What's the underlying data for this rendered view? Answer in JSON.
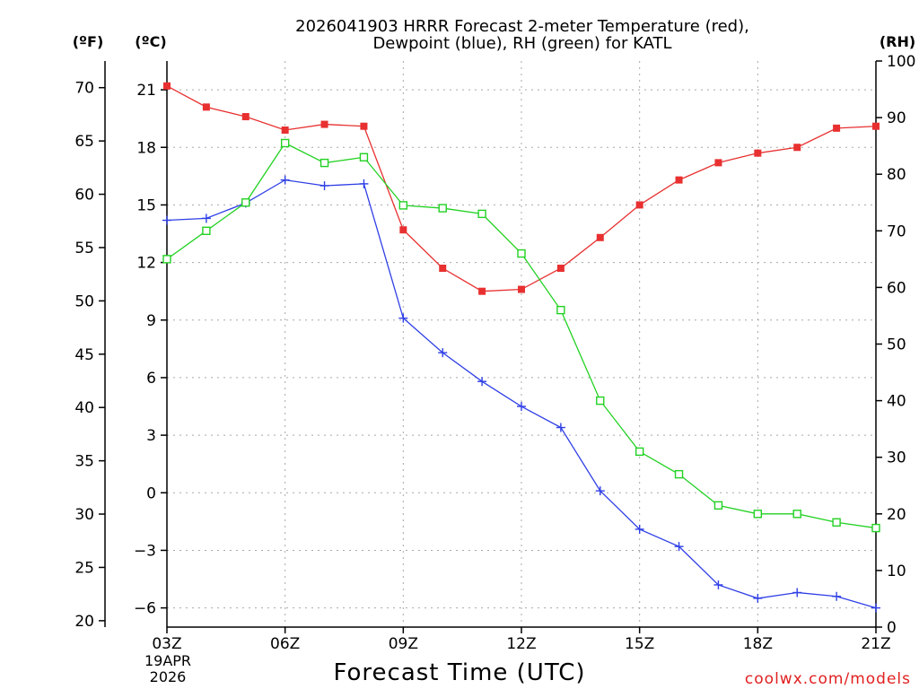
{
  "chart_data": {
    "type": "line",
    "title_line1": "2026041903 HRRR Forecast 2-meter Temperature (red),",
    "title_line2": "Dewpoint (blue), RH (green) for KATL",
    "xlabel": "Forecast Time (UTC)",
    "credit": "coolwx.com/models",
    "date_label": [
      "19APR",
      "2026"
    ],
    "unit_labels": {
      "fahrenheit": "(ºF)",
      "celsius": "(ºC)",
      "rh": "(RH)"
    },
    "x": [
      3,
      4,
      5,
      6,
      7,
      8,
      9,
      10,
      11,
      12,
      13,
      14,
      15,
      16,
      17,
      18,
      19,
      20,
      21
    ],
    "x_ticks": [
      {
        "value": 3,
        "label": "03Z"
      },
      {
        "value": 6,
        "label": "06Z"
      },
      {
        "value": 9,
        "label": "09Z"
      },
      {
        "value": 12,
        "label": "12Z"
      },
      {
        "value": 15,
        "label": "15Z"
      },
      {
        "value": 18,
        "label": "18Z"
      },
      {
        "value": 21,
        "label": "21Z"
      }
    ],
    "xlim": [
      3,
      21
    ],
    "celsius_axis": {
      "ylim": [
        -7,
        22.5
      ],
      "ticks": [
        21,
        18,
        15,
        12,
        9,
        6,
        3,
        0,
        -3,
        -6
      ],
      "tick_labels": [
        "21",
        "18",
        "15",
        "12",
        "9",
        "6",
        "3",
        "0",
        "−3",
        "−6"
      ]
    },
    "fahrenheit_axis": {
      "ticks": [
        70,
        65,
        60,
        55,
        50,
        45,
        40,
        35,
        30,
        25,
        20
      ]
    },
    "rh_axis": {
      "ylim": [
        0,
        100
      ],
      "ticks": [
        100,
        90,
        80,
        70,
        60,
        50,
        40,
        30,
        20,
        10,
        0
      ]
    },
    "grid": true,
    "series": [
      {
        "name": "Temperature",
        "unit": "C",
        "color": "#e83030",
        "marker": "filled-square",
        "values": [
          21.2,
          20.1,
          19.6,
          18.9,
          19.2,
          19.1,
          13.7,
          11.7,
          10.5,
          10.6,
          11.7,
          13.3,
          15.0,
          16.3,
          17.2,
          17.7,
          18.0,
          19.0,
          19.1
        ]
      },
      {
        "name": "Dewpoint",
        "unit": "C",
        "color": "#2f3fe6",
        "marker": "plus",
        "values": [
          14.2,
          14.3,
          15.1,
          16.3,
          16.0,
          16.1,
          9.1,
          7.3,
          5.8,
          4.5,
          3.4,
          0.1,
          -1.9,
          -2.8,
          -4.8,
          -5.5,
          -5.2,
          -5.4,
          -6.0
        ]
      },
      {
        "name": "RH",
        "unit": "%",
        "color": "#22d122",
        "marker": "open-square",
        "values": [
          65,
          70,
          75,
          85.5,
          82,
          83,
          74.5,
          74,
          73,
          66,
          56,
          40,
          31,
          27,
          21.5,
          20,
          20,
          18.5,
          17.5
        ]
      }
    ]
  }
}
